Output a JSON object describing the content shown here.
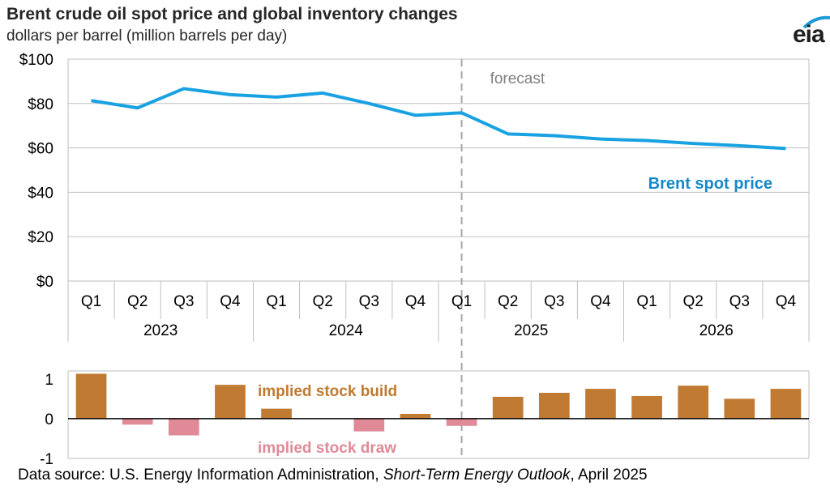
{
  "title": "Brent crude oil spot price and global inventory changes",
  "subtitle": "dollars per barrel (million barrels per day)",
  "logo": "eia",
  "source": {
    "prefix": "Data source: U.S. Energy Information Administration, ",
    "publication": "Short-Term Energy Outlook",
    "suffix": ", April 2025"
  },
  "colors": {
    "price_line": "#19a2e1",
    "price_label": "#1589c7",
    "stock_build": "#c07a31",
    "stock_draw": "#e08a97",
    "forecast_text": "#7f7f7f",
    "grid": "#bfbfbf"
  },
  "chart_data": [
    {
      "type": "line",
      "categories": [
        "Q1",
        "Q2",
        "Q3",
        "Q4",
        "Q1",
        "Q2",
        "Q3",
        "Q4",
        "Q1",
        "Q2",
        "Q3",
        "Q4",
        "Q1",
        "Q2",
        "Q3",
        "Q4"
      ],
      "years": [
        "2023",
        "2024",
        "2025",
        "2026"
      ],
      "series": [
        {
          "name": "Brent spot price",
          "values": [
            81.3,
            78.0,
            86.7,
            84.0,
            82.9,
            84.7,
            80.0,
            74.7,
            75.8,
            66.3,
            65.5,
            64.0,
            63.3,
            62.0,
            61.0,
            59.7
          ]
        }
      ],
      "yticks": [
        "$0",
        "$20",
        "$40",
        "$60",
        "$80",
        "$100"
      ],
      "ylim": [
        0,
        100
      ],
      "annotations": [
        "forecast"
      ],
      "forecast_start_index": 9,
      "grid": true
    },
    {
      "type": "bar",
      "categories": [
        "Q1",
        "Q2",
        "Q3",
        "Q4",
        "Q1",
        "Q2",
        "Q3",
        "Q4",
        "Q1",
        "Q2",
        "Q3",
        "Q4",
        "Q1",
        "Q2",
        "Q3",
        "Q4"
      ],
      "series": [
        {
          "name": "implied stock build / draw",
          "values": [
            1.13,
            -0.15,
            -0.42,
            0.85,
            0.25,
            0.0,
            -0.32,
            0.12,
            -0.18,
            0.55,
            0.65,
            0.75,
            0.57,
            0.83,
            0.5,
            0.75
          ]
        }
      ],
      "labels": {
        "build": "implied stock  build",
        "draw": "implied stock draw"
      },
      "yticks": [
        "-1",
        "0",
        "1"
      ],
      "ylim": [
        -1,
        1.2
      ],
      "forecast_start_index": 9
    }
  ]
}
